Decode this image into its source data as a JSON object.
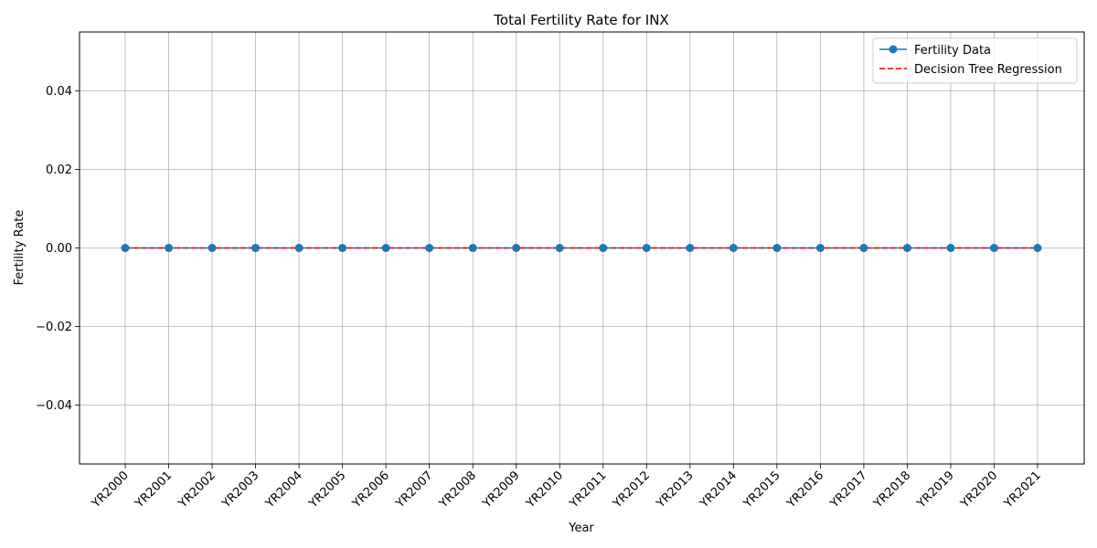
{
  "chart_data": {
    "type": "line",
    "title": "Total Fertility Rate for INX",
    "xlabel": "Year",
    "ylabel": "Fertility Rate",
    "categories": [
      "YR2000",
      "YR2001",
      "YR2002",
      "YR2003",
      "YR2004",
      "YR2005",
      "YR2006",
      "YR2007",
      "YR2008",
      "YR2009",
      "YR2010",
      "YR2011",
      "YR2012",
      "YR2013",
      "YR2014",
      "YR2015",
      "YR2016",
      "YR2017",
      "YR2018",
      "YR2019",
      "YR2020",
      "YR2021"
    ],
    "ylim": [
      -0.055,
      0.055
    ],
    "yticks": [
      -0.04,
      -0.02,
      0.0,
      0.02,
      0.04
    ],
    "ytick_labels": [
      "−0.04",
      "−0.02",
      "0.00",
      "0.02",
      "0.04"
    ],
    "grid": true,
    "legend_position": "top-right",
    "series": [
      {
        "name": "Fertility Data",
        "style": "solid-line-circle-markers",
        "color": "#1f77b4",
        "values": [
          0,
          0,
          0,
          0,
          0,
          0,
          0,
          0,
          0,
          0,
          0,
          0,
          0,
          0,
          0,
          0,
          0,
          0,
          0,
          0,
          0,
          0
        ]
      },
      {
        "name": "Decision Tree Regression",
        "style": "dashed-line",
        "color": "#ff0000",
        "values": [
          0,
          0,
          0,
          0,
          0,
          0,
          0,
          0,
          0,
          0,
          0,
          0,
          0,
          0,
          0,
          0,
          0,
          0,
          0,
          0,
          0,
          0
        ]
      }
    ]
  }
}
